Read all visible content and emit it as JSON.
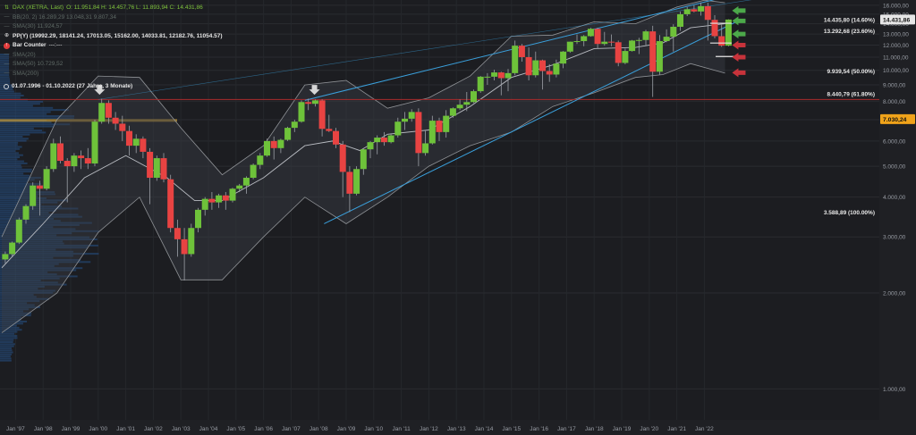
{
  "header": {
    "symbol": "DAX (XETRA, Last)",
    "ohlc": "O: 11.951,84  H: 14.457,76  L: 11.893,94  C: 14.431,86",
    "bb": "BB(20, 2)  16.289,29  13.048,31  9.807,34",
    "sma30": "SMA(30)  11.924,57",
    "pp": "PP(Y)  (19992.29, 18141.24, 17013.05, 15162.00, 14033.81, 12182.76, 11054.57)",
    "bar_counter": "Bar Counter",
    "bar_counter_suffix": "---:---",
    "sma": "SMA(20)",
    "sma50": "SMA(50)  10.729,52",
    "sma200": "SMA(200)",
    "range": "01.07.1996 - 01.10.2022  (27 Jahre, 3 Monate)"
  },
  "colors": {
    "background": "#1c1d21",
    "up": "#6ec23a",
    "down": "#e84342",
    "channel": "#3aa0dc",
    "bollinger": "#8f9296",
    "red_line": "#a92b2b",
    "last_price_bg": "#f0a31a",
    "current_price_bg": "#e6e6e6"
  },
  "chart_data": {
    "type": "candlestick",
    "scale": "log",
    "ylim": [
      800,
      16200
    ],
    "y_ticks": [
      "16.000,00",
      "15.000,00",
      "14.000,00",
      "13.000,00",
      "12.000,00",
      "11.000,00",
      "10.000,00",
      "9.000,00",
      "8.000,00",
      "7.000,00",
      "6.000,00",
      "5.000,00",
      "4.000,00",
      "3.000,00",
      "2.000,00",
      "1.000,00"
    ],
    "y_tick_values": [
      16000,
      15000,
      14000,
      13000,
      12000,
      11000,
      10000,
      9000,
      8000,
      7000,
      6000,
      5000,
      4000,
      3000,
      2000,
      1000
    ],
    "x_labels": [
      "Jan '97",
      "Jan '98",
      "Jan '99",
      "Jan '00",
      "Jan '01",
      "Jan '02",
      "Jan '03",
      "Jan '04",
      "Jan '05",
      "Jan '06",
      "Jan '07",
      "Jan '08",
      "Jan '09",
      "Jan '10",
      "Jan '11",
      "Jan '12",
      "Jan '13",
      "Jan '14",
      "Jan '15",
      "Jan '16",
      "Jan '17",
      "Jan '18",
      "Jan '19",
      "Jan '20",
      "Jan '21",
      "Jan '22"
    ],
    "x_label_years": [
      1997,
      1998,
      1999,
      2000,
      2001,
      2002,
      2003,
      2004,
      2005,
      2006,
      2007,
      2008,
      2009,
      2010,
      2011,
      2012,
      2013,
      2014,
      2015,
      2016,
      2017,
      2018,
      2019,
      2020,
      2021,
      2022
    ],
    "candles": [
      {
        "t": 1996.5,
        "o": 2550,
        "h": 2700,
        "l": 2480,
        "c": 2650
      },
      {
        "t": 1996.75,
        "o": 2650,
        "h": 2900,
        "l": 2600,
        "c": 2880
      },
      {
        "t": 1997.0,
        "o": 2880,
        "h": 3450,
        "l": 2850,
        "c": 3400
      },
      {
        "t": 1997.25,
        "o": 3400,
        "h": 3800,
        "l": 3300,
        "c": 3750
      },
      {
        "t": 1997.5,
        "o": 3750,
        "h": 4450,
        "l": 3650,
        "c": 4350
      },
      {
        "t": 1997.75,
        "o": 4350,
        "h": 4500,
        "l": 3500,
        "c": 4250
      },
      {
        "t": 1998.0,
        "o": 4250,
        "h": 5000,
        "l": 4200,
        "c": 4900
      },
      {
        "t": 1998.25,
        "o": 4900,
        "h": 6100,
        "l": 4800,
        "c": 5900
      },
      {
        "t": 1998.5,
        "o": 5900,
        "h": 6200,
        "l": 5100,
        "c": 5200
      },
      {
        "t": 1998.75,
        "o": 5200,
        "h": 5300,
        "l": 3850,
        "c": 5000
      },
      {
        "t": 1999.0,
        "o": 5000,
        "h": 5500,
        "l": 4800,
        "c": 5400
      },
      {
        "t": 1999.25,
        "o": 5400,
        "h": 5600,
        "l": 4900,
        "c": 5300
      },
      {
        "t": 1999.5,
        "o": 5300,
        "h": 5700,
        "l": 4900,
        "c": 5100
      },
      {
        "t": 1999.75,
        "o": 5100,
        "h": 7000,
        "l": 5000,
        "c": 6900
      },
      {
        "t": 2000.0,
        "o": 6900,
        "h": 8140,
        "l": 6800,
        "c": 7900
      },
      {
        "t": 2000.25,
        "o": 7900,
        "h": 8050,
        "l": 6800,
        "c": 7100
      },
      {
        "t": 2000.5,
        "o": 7100,
        "h": 7400,
        "l": 6500,
        "c": 6800
      },
      {
        "t": 2000.75,
        "o": 6800,
        "h": 7200,
        "l": 6000,
        "c": 6450
      },
      {
        "t": 2001.0,
        "o": 6450,
        "h": 6700,
        "l": 5400,
        "c": 5800
      },
      {
        "t": 2001.25,
        "o": 5800,
        "h": 6300,
        "l": 5500,
        "c": 6100
      },
      {
        "t": 2001.5,
        "o": 6100,
        "h": 6200,
        "l": 5300,
        "c": 5550
      },
      {
        "t": 2001.75,
        "o": 5550,
        "h": 5700,
        "l": 3800,
        "c": 4600
      },
      {
        "t": 2002.0,
        "o": 4600,
        "h": 5400,
        "l": 4500,
        "c": 5300
      },
      {
        "t": 2002.25,
        "o": 5300,
        "h": 5500,
        "l": 4450,
        "c": 4550
      },
      {
        "t": 2002.5,
        "o": 4550,
        "h": 4700,
        "l": 3100,
        "c": 3200
      },
      {
        "t": 2002.75,
        "o": 3200,
        "h": 3400,
        "l": 2600,
        "c": 2950
      },
      {
        "t": 2003.0,
        "o": 2950,
        "h": 3200,
        "l": 2190,
        "c": 2650
      },
      {
        "t": 2003.25,
        "o": 2650,
        "h": 3300,
        "l": 2600,
        "c": 3200
      },
      {
        "t": 2003.5,
        "o": 3200,
        "h": 3700,
        "l": 3100,
        "c": 3650
      },
      {
        "t": 2003.75,
        "o": 3650,
        "h": 4000,
        "l": 3500,
        "c": 3950
      },
      {
        "t": 2004.0,
        "o": 3950,
        "h": 4150,
        "l": 3650,
        "c": 3850
      },
      {
        "t": 2004.25,
        "o": 3850,
        "h": 4100,
        "l": 3700,
        "c": 4050
      },
      {
        "t": 2004.5,
        "o": 4050,
        "h": 4150,
        "l": 3650,
        "c": 3900
      },
      {
        "t": 2004.75,
        "o": 3900,
        "h": 4280,
        "l": 3850,
        "c": 4250
      },
      {
        "t": 2005.0,
        "o": 4250,
        "h": 4400,
        "l": 4150,
        "c": 4350
      },
      {
        "t": 2005.25,
        "o": 4350,
        "h": 4650,
        "l": 4100,
        "c": 4600
      },
      {
        "t": 2005.5,
        "o": 4600,
        "h": 5100,
        "l": 4550,
        "c": 5050
      },
      {
        "t": 2005.75,
        "o": 5050,
        "h": 5500,
        "l": 4900,
        "c": 5400
      },
      {
        "t": 2006.0,
        "o": 5400,
        "h": 6100,
        "l": 5350,
        "c": 6000
      },
      {
        "t": 2006.25,
        "o": 6000,
        "h": 6200,
        "l": 5250,
        "c": 5700
      },
      {
        "t": 2006.5,
        "o": 5700,
        "h": 6100,
        "l": 5500,
        "c": 6050
      },
      {
        "t": 2006.75,
        "o": 6050,
        "h": 6650,
        "l": 6000,
        "c": 6600
      },
      {
        "t": 2007.0,
        "o": 6600,
        "h": 7000,
        "l": 6400,
        "c": 6900
      },
      {
        "t": 2007.25,
        "o": 6900,
        "h": 8050,
        "l": 6850,
        "c": 7950
      },
      {
        "t": 2007.5,
        "o": 7950,
        "h": 8150,
        "l": 7500,
        "c": 7850
      },
      {
        "t": 2007.75,
        "o": 7850,
        "h": 8100,
        "l": 7700,
        "c": 8050
      },
      {
        "t": 2008.0,
        "o": 8050,
        "h": 8100,
        "l": 6200,
        "c": 6550
      },
      {
        "t": 2008.25,
        "o": 6550,
        "h": 7250,
        "l": 6400,
        "c": 6450
      },
      {
        "t": 2008.5,
        "o": 6450,
        "h": 6600,
        "l": 5700,
        "c": 5850
      },
      {
        "t": 2008.75,
        "o": 5850,
        "h": 6000,
        "l": 4000,
        "c": 4800
      },
      {
        "t": 2009.0,
        "o": 4800,
        "h": 5000,
        "l": 3590,
        "c": 4100
      },
      {
        "t": 2009.25,
        "o": 4100,
        "h": 5000,
        "l": 4050,
        "c": 4900
      },
      {
        "t": 2009.5,
        "o": 4900,
        "h": 5700,
        "l": 4700,
        "c": 5650
      },
      {
        "t": 2009.75,
        "o": 5650,
        "h": 6000,
        "l": 5300,
        "c": 5950
      },
      {
        "t": 2010.0,
        "o": 5950,
        "h": 6250,
        "l": 5450,
        "c": 6150
      },
      {
        "t": 2010.25,
        "o": 6150,
        "h": 6400,
        "l": 5800,
        "c": 5950
      },
      {
        "t": 2010.5,
        "o": 5950,
        "h": 6300,
        "l": 5900,
        "c": 6250
      },
      {
        "t": 2010.75,
        "o": 6250,
        "h": 7100,
        "l": 6150,
        "c": 6900
      },
      {
        "t": 2011.0,
        "o": 6900,
        "h": 7400,
        "l": 6500,
        "c": 7050
      },
      {
        "t": 2011.25,
        "o": 7050,
        "h": 7550,
        "l": 6900,
        "c": 7400
      },
      {
        "t": 2011.5,
        "o": 7400,
        "h": 7600,
        "l": 5000,
        "c": 5500
      },
      {
        "t": 2011.75,
        "o": 5500,
        "h": 6450,
        "l": 5400,
        "c": 5900
      },
      {
        "t": 2012.0,
        "o": 5900,
        "h": 7200,
        "l": 5850,
        "c": 6950
      },
      {
        "t": 2012.25,
        "o": 6950,
        "h": 7100,
        "l": 6000,
        "c": 6400
      },
      {
        "t": 2012.5,
        "o": 6400,
        "h": 7500,
        "l": 6150,
        "c": 7200
      },
      {
        "t": 2012.75,
        "o": 7200,
        "h": 7650,
        "l": 7100,
        "c": 7600
      },
      {
        "t": 2013.0,
        "o": 7600,
        "h": 8100,
        "l": 7500,
        "c": 7800
      },
      {
        "t": 2013.25,
        "o": 7800,
        "h": 8550,
        "l": 7450,
        "c": 7950
      },
      {
        "t": 2013.5,
        "o": 7950,
        "h": 8700,
        "l": 7900,
        "c": 8600
      },
      {
        "t": 2013.75,
        "o": 8600,
        "h": 9600,
        "l": 8500,
        "c": 9550
      },
      {
        "t": 2014.0,
        "o": 9550,
        "h": 9800,
        "l": 9000,
        "c": 9550
      },
      {
        "t": 2014.25,
        "o": 9550,
        "h": 10050,
        "l": 9300,
        "c": 9850
      },
      {
        "t": 2014.5,
        "o": 9850,
        "h": 9900,
        "l": 8350,
        "c": 9450
      },
      {
        "t": 2014.75,
        "o": 9450,
        "h": 10100,
        "l": 8600,
        "c": 9800
      },
      {
        "t": 2015.0,
        "o": 9800,
        "h": 12400,
        "l": 9650,
        "c": 11950
      },
      {
        "t": 2015.25,
        "o": 11950,
        "h": 12100,
        "l": 10650,
        "c": 11000
      },
      {
        "t": 2015.5,
        "o": 11000,
        "h": 11800,
        "l": 9300,
        "c": 9650
      },
      {
        "t": 2015.75,
        "o": 9650,
        "h": 11450,
        "l": 9500,
        "c": 10750
      },
      {
        "t": 2016.0,
        "o": 10750,
        "h": 10800,
        "l": 8700,
        "c": 9950
      },
      {
        "t": 2016.25,
        "o": 9950,
        "h": 10450,
        "l": 9200,
        "c": 9700
      },
      {
        "t": 2016.5,
        "o": 9700,
        "h": 10800,
        "l": 9500,
        "c": 10500
      },
      {
        "t": 2016.75,
        "o": 10500,
        "h": 11500,
        "l": 10150,
        "c": 11450
      },
      {
        "t": 2017.0,
        "o": 11450,
        "h": 12300,
        "l": 11350,
        "c": 12300
      },
      {
        "t": 2017.25,
        "o": 12300,
        "h": 12950,
        "l": 12100,
        "c": 12350
      },
      {
        "t": 2017.5,
        "o": 12350,
        "h": 12900,
        "l": 11900,
        "c": 12800
      },
      {
        "t": 2017.75,
        "o": 12800,
        "h": 13600,
        "l": 12750,
        "c": 13500
      },
      {
        "t": 2018.0,
        "o": 13500,
        "h": 13600,
        "l": 11700,
        "c": 12100
      },
      {
        "t": 2018.25,
        "o": 12100,
        "h": 13200,
        "l": 11950,
        "c": 12300
      },
      {
        "t": 2018.5,
        "o": 12300,
        "h": 12950,
        "l": 11900,
        "c": 12250
      },
      {
        "t": 2018.75,
        "o": 12250,
        "h": 12400,
        "l": 10300,
        "c": 10550
      },
      {
        "t": 2019.0,
        "o": 10550,
        "h": 11700,
        "l": 10450,
        "c": 11500
      },
      {
        "t": 2019.25,
        "o": 11500,
        "h": 12450,
        "l": 11450,
        "c": 12400
      },
      {
        "t": 2019.5,
        "o": 12400,
        "h": 12650,
        "l": 11250,
        "c": 12450
      },
      {
        "t": 2019.75,
        "o": 12450,
        "h": 13400,
        "l": 12000,
        "c": 13250
      },
      {
        "t": 2020.0,
        "o": 13250,
        "h": 13800,
        "l": 8250,
        "c": 9900
      },
      {
        "t": 2020.25,
        "o": 9900,
        "h": 12900,
        "l": 9700,
        "c": 12350
      },
      {
        "t": 2020.5,
        "o": 12350,
        "h": 13450,
        "l": 12250,
        "c": 12750
      },
      {
        "t": 2020.75,
        "o": 12750,
        "h": 13950,
        "l": 11450,
        "c": 13700
      },
      {
        "t": 2021.0,
        "o": 13700,
        "h": 15300,
        "l": 13300,
        "c": 15000
      },
      {
        "t": 2021.25,
        "o": 15000,
        "h": 15800,
        "l": 14800,
        "c": 15550
      },
      {
        "t": 2021.5,
        "o": 15550,
        "h": 16000,
        "l": 15200,
        "c": 15300
      },
      {
        "t": 2021.75,
        "o": 15300,
        "h": 16300,
        "l": 14850,
        "c": 15900
      },
      {
        "t": 2022.0,
        "o": 15900,
        "h": 16300,
        "l": 12400,
        "c": 14400
      },
      {
        "t": 2022.25,
        "o": 14400,
        "h": 14900,
        "l": 12600,
        "c": 12800
      },
      {
        "t": 2022.5,
        "o": 12800,
        "h": 13900,
        "l": 11850,
        "c": 11950
      },
      {
        "t": 2022.75,
        "o": 11950,
        "h": 14458,
        "l": 11894,
        "c": 14432
      }
    ],
    "fib_levels": [
      {
        "label": "14.435,80 (14.60%)",
        "value": 14435.8
      },
      {
        "label": "13.292,68 (23.60%)",
        "value": 13292.68
      },
      {
        "label": "9.939,54 (50.00%)",
        "value": 9939.54
      },
      {
        "label": "8.440,79 (61.80%)",
        "value": 8440.79
      },
      {
        "label": "3.588,89 (100.00%)",
        "value": 3588.89
      }
    ],
    "red_line_value": 8100,
    "price_tags": [
      {
        "label": "14.431,86",
        "value": 14431.86,
        "kind": "current"
      },
      {
        "label": "7.030,24",
        "value": 7030.24,
        "kind": "level"
      }
    ],
    "gray_arrows": [
      {
        "t": 2000.05,
        "v": 8600
      },
      {
        "t": 2007.85,
        "v": 8600
      }
    ],
    "green_arrows": [
      {
        "t": 2023.3,
        "v": 15400
      },
      {
        "t": 2023.3,
        "v": 14300
      },
      {
        "t": 2023.3,
        "v": 13000
      }
    ],
    "red_arrows": [
      {
        "t": 2023.3,
        "v": 12000
      },
      {
        "t": 2023.3,
        "v": 11000
      },
      {
        "t": 2023.3,
        "v": 9830
      }
    ],
    "pivot_marks": [
      {
        "t": 2022.6,
        "v": 14050
      },
      {
        "t": 2022.6,
        "v": 12180
      },
      {
        "t": 2022.8,
        "v": 11050
      }
    ],
    "channel": {
      "upper": [
        [
          2007.5,
          8050
        ],
        [
          2022.4,
          16700
        ]
      ],
      "lower": [
        [
          2008.2,
          3300
        ],
        [
          2023.3,
          14400
        ]
      ],
      "outer": [
        [
          2000.0,
          8100
        ],
        [
          2024.0,
          16800
        ]
      ]
    },
    "bollinger_upper": [
      [
        1996.5,
        3000
      ],
      [
        1998.5,
        7000
      ],
      [
        2000.0,
        9600
      ],
      [
        2001.5,
        9500
      ],
      [
        2003.0,
        6600
      ],
      [
        2004.5,
        4700
      ],
      [
        2006.0,
        5800
      ],
      [
        2007.5,
        9000
      ],
      [
        2009.0,
        9300
      ],
      [
        2010.5,
        7600
      ],
      [
        2012.0,
        8200
      ],
      [
        2013.5,
        9600
      ],
      [
        2015.0,
        12800
      ],
      [
        2016.5,
        12900
      ],
      [
        2018.0,
        14200
      ],
      [
        2019.5,
        14000
      ],
      [
        2021.0,
        15800
      ],
      [
        2022.0,
        16600
      ],
      [
        2022.75,
        16300
      ]
    ],
    "bollinger_lower": [
      [
        1996.5,
        1500
      ],
      [
        1998.5,
        2000
      ],
      [
        2000.0,
        3100
      ],
      [
        2001.5,
        4000
      ],
      [
        2003.0,
        2200
      ],
      [
        2004.5,
        2200
      ],
      [
        2006.0,
        3000
      ],
      [
        2007.5,
        4000
      ],
      [
        2009.0,
        3300
      ],
      [
        2010.5,
        4000
      ],
      [
        2012.0,
        5000
      ],
      [
        2013.5,
        5800
      ],
      [
        2015.0,
        6400
      ],
      [
        2016.5,
        7700
      ],
      [
        2018.0,
        8500
      ],
      [
        2019.5,
        9500
      ],
      [
        2020.5,
        9700
      ],
      [
        2021.5,
        10500
      ],
      [
        2022.75,
        9800
      ]
    ],
    "sma_line": [
      [
        1996.5,
        2400
      ],
      [
        1998.0,
        3300
      ],
      [
        1999.5,
        4600
      ],
      [
        2001.0,
        5400
      ],
      [
        2002.5,
        4600
      ],
      [
        2003.5,
        3900
      ],
      [
        2004.5,
        3900
      ],
      [
        2006.0,
        4600
      ],
      [
        2007.5,
        5800
      ],
      [
        2008.5,
        6000
      ],
      [
        2009.5,
        5600
      ],
      [
        2010.5,
        6300
      ],
      [
        2012.0,
        6500
      ],
      [
        2013.5,
        7700
      ],
      [
        2015.0,
        9500
      ],
      [
        2016.5,
        10400
      ],
      [
        2018.0,
        11700
      ],
      [
        2019.5,
        11800
      ],
      [
        2020.5,
        12200
      ],
      [
        2021.5,
        13600
      ],
      [
        2022.75,
        14000
      ]
    ]
  }
}
